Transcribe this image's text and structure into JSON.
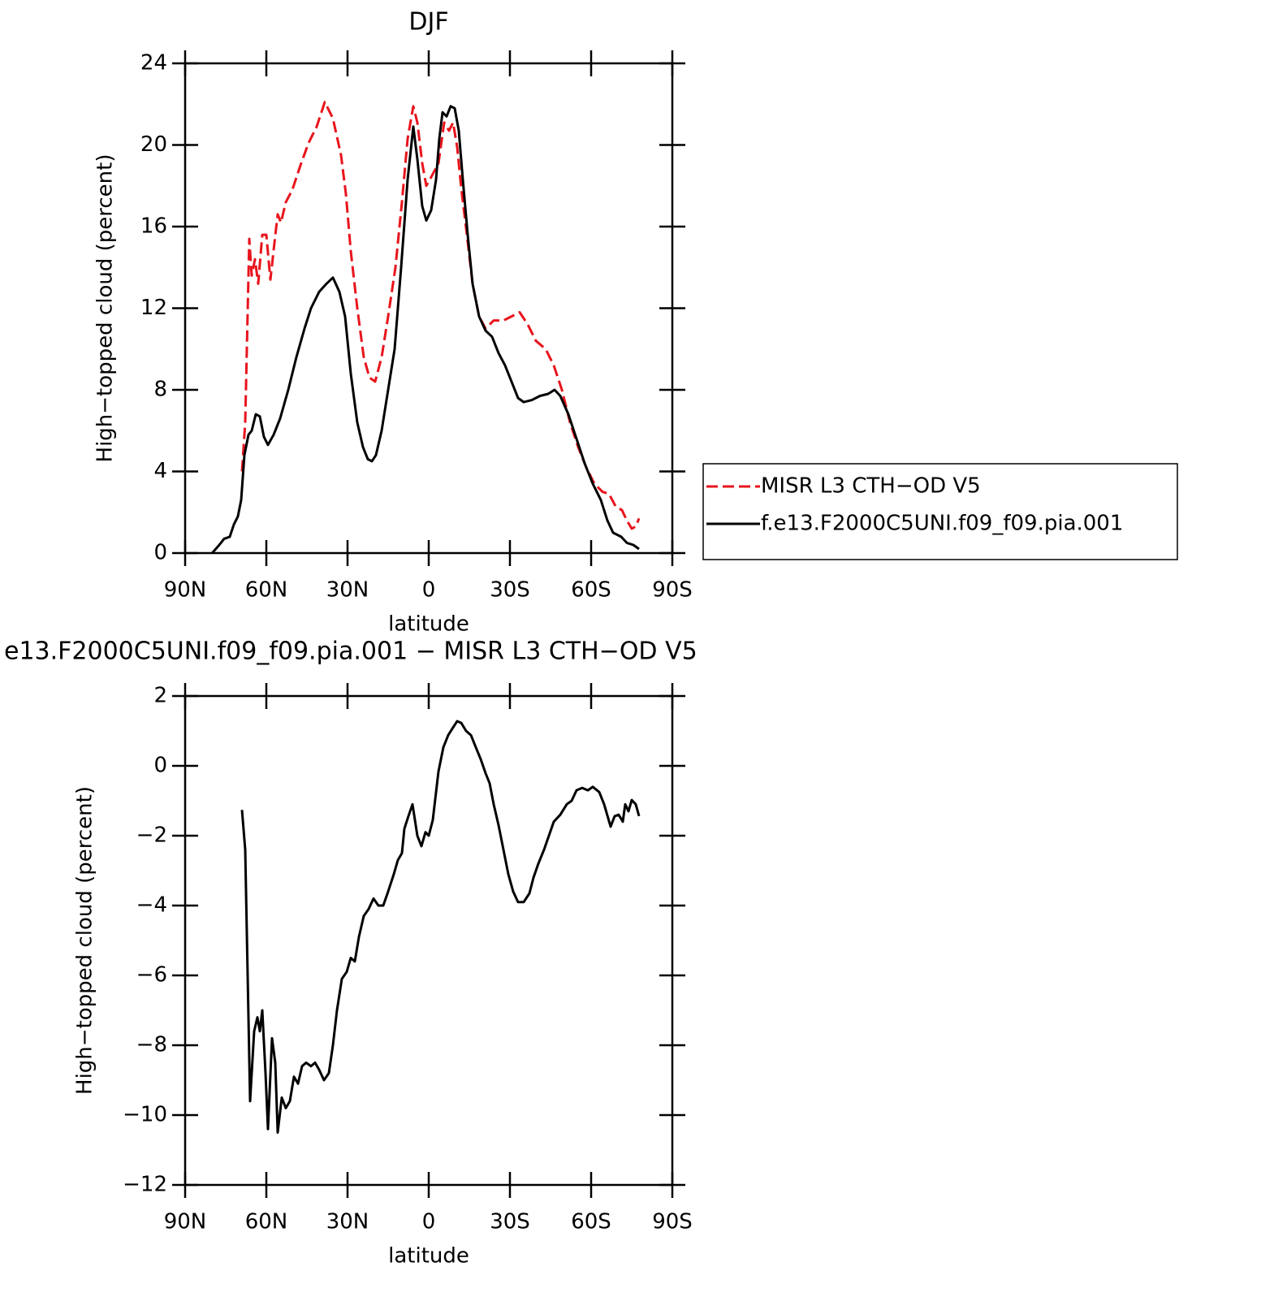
{
  "chart_data": [
    {
      "type": "line",
      "title": "DJF",
      "xlabel": "latitude",
      "ylabel": "High−topped cloud (percent)",
      "xlim": [
        90,
        -90
      ],
      "xticks": [
        {
          "value": 90,
          "label": "90N"
        },
        {
          "value": 60,
          "label": "60N"
        },
        {
          "value": 30,
          "label": "30N"
        },
        0,
        {
          "value": -30,
          "label": "30S"
        },
        {
          "value": -60,
          "label": "60S"
        },
        {
          "value": -90,
          "label": "90S"
        }
      ],
      "ylim": [
        0,
        24
      ],
      "yticks": [
        0,
        4,
        8,
        12,
        16,
        20,
        24
      ],
      "legend": "right",
      "series": [
        {
          "name": "MISR L3 CTH−OD V5",
          "color": "#e8141c",
          "dash": true,
          "x": [
            69,
            67.8,
            66.3,
            65.4,
            64.2,
            63,
            61.5,
            60,
            58.5,
            57,
            55.8,
            54.6,
            52.8,
            50.4,
            47.4,
            44.4,
            41.4,
            38.4,
            35.4,
            32.4,
            30.6,
            28.8,
            26.4,
            24,
            21.9,
            19.8,
            17.4,
            15,
            12.3,
            9.9,
            7.8,
            5.7,
            4.2,
            2.4,
            0.9,
            -1.2,
            -3.6,
            -5.7,
            -7.5,
            -9,
            -10.5,
            -12,
            -14.1,
            -16.2,
            -18.6,
            -21,
            -24,
            -27.6,
            -30.6,
            -33.6,
            -36.6,
            -39.6,
            -43.2,
            -46.2,
            -49.2,
            -52.2,
            -55.2,
            -58.2,
            -61.2,
            -64.2,
            -66.6,
            -69,
            -71.4,
            -73.2,
            -75,
            -76.5,
            -77.7
          ],
          "values": [
            4.0,
            6.4,
            15.4,
            13.6,
            14.4,
            13.2,
            15.6,
            15.6,
            13.4,
            15.2,
            16.6,
            16.2,
            17.2,
            17.8,
            19.0,
            20.1,
            20.9,
            22.1,
            21.3,
            19.5,
            17.6,
            14.8,
            12.0,
            9.6,
            8.6,
            8.4,
            9.6,
            11.6,
            14.0,
            17.2,
            20.3,
            21.9,
            21.1,
            19.1,
            18.0,
            18.5,
            19.1,
            21.1,
            20.7,
            21.1,
            19.9,
            17.9,
            15.6,
            13.2,
            11.6,
            11.0,
            11.4,
            11.4,
            11.6,
            11.8,
            11.2,
            10.4,
            10.0,
            9.2,
            8.0,
            6.4,
            5.2,
            4.2,
            3.4,
            3.0,
            2.9,
            2.3,
            2.1,
            1.6,
            1.2,
            1.3,
            1.7
          ]
        },
        {
          "name": "f.e13.F2000C5UNI.f09_f09.pia.001",
          "color": "#000000",
          "dash": false,
          "x": [
            80,
            77.4,
            75.6,
            73.5,
            72,
            70.5,
            69.3,
            68.1,
            66.6,
            65.4,
            63.9,
            62.4,
            60.9,
            59.4,
            57.3,
            54.9,
            51.9,
            48.9,
            45.9,
            43.5,
            40.5,
            37.8,
            35.4,
            33,
            30.9,
            28.8,
            26.4,
            24.3,
            22.5,
            21,
            19.5,
            17.4,
            15,
            12.6,
            10.2,
            7.8,
            5.7,
            4.2,
            2.4,
            0.9,
            -0.9,
            -2.7,
            -3.9,
            -5.1,
            -6.6,
            -8.1,
            -9.6,
            -11.1,
            -12.6,
            -14.4,
            -16.2,
            -18.6,
            -21,
            -23.4,
            -25.8,
            -28.2,
            -30.6,
            -33,
            -35.1,
            -38.1,
            -41.1,
            -44.1,
            -46.5,
            -48.6,
            -51.6,
            -54.6,
            -57.6,
            -60.6,
            -63.6,
            -66,
            -68.1,
            -71.1,
            -73.2,
            -75.6,
            -77.7
          ],
          "values": [
            0.0,
            0.4,
            0.7,
            0.8,
            1.4,
            1.8,
            2.6,
            4.8,
            5.8,
            6.0,
            6.8,
            6.7,
            5.7,
            5.3,
            5.8,
            6.6,
            8.0,
            9.6,
            11.0,
            12.0,
            12.8,
            13.2,
            13.5,
            12.8,
            11.6,
            8.8,
            6.4,
            5.2,
            4.6,
            4.5,
            4.8,
            6.0,
            8.0,
            10.0,
            14.0,
            18.3,
            20.9,
            19.3,
            17.0,
            16.3,
            16.8,
            18.3,
            20.3,
            21.6,
            21.4,
            21.9,
            21.8,
            20.7,
            18.3,
            15.6,
            13.2,
            11.6,
            10.9,
            10.6,
            9.8,
            9.2,
            8.4,
            7.6,
            7.4,
            7.5,
            7.7,
            7.8,
            8.0,
            7.7,
            6.8,
            5.6,
            4.4,
            3.4,
            2.6,
            1.6,
            1.0,
            0.8,
            0.5,
            0.4,
            0.2
          ]
        }
      ]
    },
    {
      "type": "line",
      "title": "e13.F2000C5UNI.f09_f09.pia.001 − MISR L3 CTH−OD V5",
      "xlabel": "latitude",
      "ylabel": "High−topped cloud (percent)",
      "xlim": [
        90,
        -90
      ],
      "xticks": [
        {
          "value": 90,
          "label": "90N"
        },
        {
          "value": 60,
          "label": "60N"
        },
        {
          "value": 30,
          "label": "30N"
        },
        0,
        {
          "value": -30,
          "label": "30S"
        },
        {
          "value": -60,
          "label": "60S"
        },
        {
          "value": -90,
          "label": "90S"
        }
      ],
      "ylim": [
        -12,
        2
      ],
      "yticks": [
        {
          "value": -12,
          "label": "−12"
        },
        {
          "value": -10,
          "label": "−10"
        },
        {
          "value": -8,
          "label": "−8"
        },
        {
          "value": -6,
          "label": "−6"
        },
        {
          "value": -4,
          "label": "−4"
        },
        {
          "value": -2,
          "label": "−2"
        },
        0,
        2
      ],
      "series": [
        {
          "color": "#000000",
          "dash": false,
          "x": [
            69,
            67.8,
            66,
            64.5,
            63.3,
            62.4,
            61.5,
            60.3,
            59.4,
            57.9,
            56.7,
            55.8,
            54.3,
            52.8,
            51.3,
            49.8,
            48.3,
            46.8,
            45.3,
            43.5,
            42,
            40.5,
            38.7,
            36.9,
            35.4,
            33.9,
            32.1,
            30.3,
            28.8,
            27.3,
            25.8,
            24,
            22.2,
            20.4,
            18.6,
            16.8,
            15,
            12.9,
            11.4,
            9.9,
            9,
            7.5,
            6,
            4.2,
            2.7,
            1.2,
            0,
            -1.5,
            -3.6,
            -5.4,
            -7.2,
            -9,
            -10.5,
            -12,
            -13.8,
            -15.6,
            -17.4,
            -19.2,
            -21,
            -22.5,
            -24,
            -25.8,
            -27.6,
            -29.4,
            -31.2,
            -33,
            -35.1,
            -37.2,
            -38.7,
            -40.5,
            -42.6,
            -44.4,
            -46.2,
            -48.6,
            -51,
            -52.8,
            -54.6,
            -56.7,
            -58.8,
            -60.6,
            -63,
            -64.8,
            -67.2,
            -68.7,
            -70.2,
            -71.7,
            -72.6,
            -73.8,
            -75,
            -76.5,
            -77.7
          ],
          "values": [
            -1.26,
            -2.4,
            -9.6,
            -7.6,
            -7.2,
            -7.6,
            -7.0,
            -8.8,
            -10.4,
            -7.8,
            -8.5,
            -10.5,
            -9.5,
            -9.8,
            -9.6,
            -8.9,
            -9.1,
            -8.6,
            -8.5,
            -8.6,
            -8.5,
            -8.7,
            -9.0,
            -8.8,
            -8.0,
            -7.0,
            -6.1,
            -5.9,
            -5.5,
            -5.6,
            -4.9,
            -4.3,
            -4.1,
            -3.8,
            -4.0,
            -4.0,
            -3.6,
            -3.1,
            -2.7,
            -2.5,
            -1.8,
            -1.44,
            -1.1,
            -2.0,
            -2.3,
            -1.9,
            -2.0,
            -1.55,
            -0.16,
            0.53,
            0.88,
            1.1,
            1.28,
            1.23,
            1.0,
            0.88,
            0.53,
            0.19,
            -0.21,
            -0.5,
            -1.1,
            -1.7,
            -2.4,
            -3.1,
            -3.6,
            -3.9,
            -3.9,
            -3.65,
            -3.2,
            -2.8,
            -2.4,
            -2.0,
            -1.6,
            -1.4,
            -1.1,
            -1.0,
            -0.7,
            -0.63,
            -0.7,
            -0.6,
            -0.75,
            -1.1,
            -1.74,
            -1.44,
            -1.4,
            -1.6,
            -1.1,
            -1.3,
            -0.98,
            -1.1,
            -1.44
          ]
        }
      ]
    }
  ]
}
